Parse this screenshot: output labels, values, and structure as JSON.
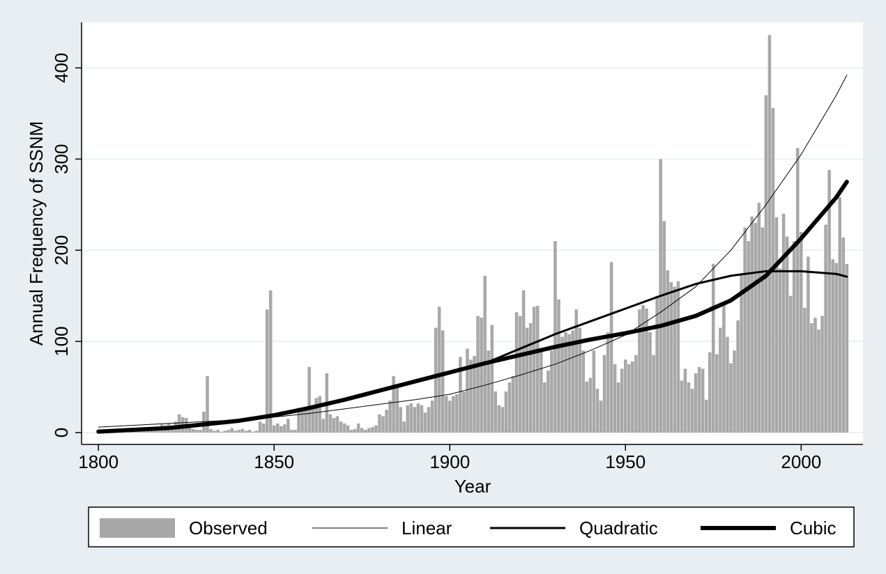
{
  "chart_data": {
    "type": "bar+line",
    "xlabel": "Year",
    "ylabel": "Annual Frequency of SSNM",
    "xlim": [
      1795.2,
      2017.6
    ],
    "ylim": [
      -13,
      450
    ],
    "xticks": [
      1800,
      1850,
      1900,
      1950,
      2000
    ],
    "yticks": [
      0,
      100,
      200,
      300,
      400
    ],
    "grid": true,
    "legend": "bottom",
    "series": [
      {
        "name": "Observed",
        "type": "bar",
        "color": "#a8a8a8",
        "x": [
          1800,
          1801,
          1802,
          1803,
          1804,
          1805,
          1806,
          1807,
          1808,
          1809,
          1810,
          1811,
          1812,
          1813,
          1814,
          1815,
          1816,
          1817,
          1818,
          1819,
          1820,
          1821,
          1822,
          1823,
          1824,
          1825,
          1826,
          1827,
          1828,
          1829,
          1830,
          1831,
          1832,
          1833,
          1834,
          1835,
          1836,
          1837,
          1838,
          1839,
          1840,
          1841,
          1842,
          1843,
          1844,
          1845,
          1846,
          1847,
          1848,
          1849,
          1850,
          1851,
          1852,
          1853,
          1854,
          1855,
          1856,
          1857,
          1858,
          1859,
          1860,
          1861,
          1862,
          1863,
          1864,
          1865,
          1866,
          1867,
          1868,
          1869,
          1870,
          1871,
          1872,
          1873,
          1874,
          1875,
          1876,
          1877,
          1878,
          1879,
          1880,
          1881,
          1882,
          1883,
          1884,
          1885,
          1886,
          1887,
          1888,
          1889,
          1890,
          1891,
          1892,
          1893,
          1894,
          1895,
          1896,
          1897,
          1898,
          1899,
          1900,
          1901,
          1902,
          1903,
          1904,
          1905,
          1906,
          1907,
          1908,
          1909,
          1910,
          1911,
          1912,
          1913,
          1914,
          1915,
          1916,
          1917,
          1918,
          1919,
          1920,
          1921,
          1922,
          1923,
          1924,
          1925,
          1926,
          1927,
          1928,
          1929,
          1930,
          1931,
          1932,
          1933,
          1934,
          1935,
          1936,
          1937,
          1938,
          1939,
          1940,
          1941,
          1942,
          1943,
          1944,
          1945,
          1946,
          1947,
          1948,
          1949,
          1950,
          1951,
          1952,
          1953,
          1954,
          1955,
          1956,
          1957,
          1958,
          1959,
          1960,
          1961,
          1962,
          1963,
          1964,
          1965,
          1966,
          1967,
          1968,
          1969,
          1970,
          1971,
          1972,
          1973,
          1974,
          1975,
          1976,
          1977,
          1978,
          1979,
          1980,
          1981,
          1982,
          1983,
          1984,
          1985,
          1986,
          1987,
          1988,
          1989,
          1990,
          1991,
          1992,
          1993,
          1994,
          1995,
          1996,
          1997,
          1998,
          1999,
          2000,
          2001,
          2002,
          2003,
          2004,
          2005,
          2006,
          2007,
          2008,
          2009,
          2010,
          2011,
          2012,
          2013
        ],
        "values": [
          1,
          0,
          1,
          0,
          2,
          1,
          1,
          2,
          0,
          1,
          2,
          1,
          3,
          2,
          4,
          3,
          5,
          6,
          9,
          8,
          10,
          8,
          12,
          20,
          17,
          16,
          5,
          4,
          3,
          3,
          23,
          62,
          4,
          2,
          3,
          1,
          2,
          3,
          5,
          2,
          3,
          4,
          2,
          3,
          1,
          2,
          12,
          10,
          135,
          156,
          8,
          10,
          7,
          9,
          15,
          3,
          3,
          27,
          25,
          27,
          72,
          30,
          38,
          40,
          15,
          65,
          20,
          16,
          18,
          12,
          10,
          8,
          3,
          4,
          10,
          5,
          3,
          5,
          6,
          8,
          20,
          18,
          25,
          35,
          62,
          50,
          28,
          12,
          30,
          32,
          28,
          32,
          30,
          22,
          28,
          35,
          115,
          138,
          112,
          40,
          35,
          40,
          42,
          83,
          45,
          92,
          80,
          84,
          128,
          126,
          172,
          90,
          118,
          45,
          30,
          28,
          45,
          55,
          62,
          132,
          128,
          156,
          115,
          120,
          138,
          139,
          90,
          55,
          68,
          90,
          210,
          146,
          105,
          110,
          108,
          112,
          135,
          115,
          90,
          56,
          60,
          90,
          48,
          35,
          85,
          110,
          187,
          75,
          55,
          70,
          80,
          75,
          78,
          85,
          135,
          140,
          136,
          110,
          85,
          150,
          300,
          232,
          178,
          165,
          160,
          166,
          57,
          70,
          55,
          48,
          65,
          72,
          70,
          36,
          88,
          185,
          86,
          115,
          140,
          105,
          76,
          90,
          123,
          175,
          225,
          210,
          237,
          230,
          252,
          225,
          370,
          436,
          356,
          236,
          180,
          240,
          215,
          150,
          210,
          312,
          220,
          137,
          193,
          120,
          126,
          113,
          128,
          228,
          288,
          190,
          186,
          258,
          214,
          185
        ]
      },
      {
        "name": "Linear",
        "type": "line",
        "color": "#000000",
        "line_width": 1,
        "x": [
          1800,
          1810,
          1820,
          1830,
          1840,
          1850,
          1860,
          1870,
          1880,
          1890,
          1900,
          1910,
          1920,
          1930,
          1940,
          1950,
          1960,
          1970,
          1980,
          1990,
          2000,
          2010,
          2013
        ],
        "values": [
          6,
          8,
          10,
          12,
          14,
          17,
          21,
          26,
          31,
          36,
          42,
          52,
          63,
          75,
          90,
          107,
          132,
          160,
          200,
          250,
          305,
          370,
          392
        ]
      },
      {
        "name": "Quadratic",
        "type": "line",
        "color": "#000000",
        "line_width": 3,
        "x": [
          1800,
          1810,
          1820,
          1830,
          1840,
          1850,
          1860,
          1870,
          1880,
          1890,
          1900,
          1910,
          1920,
          1930,
          1940,
          1950,
          1960,
          1970,
          1980,
          1990,
          2000,
          2010,
          2013
        ],
        "values": [
          1,
          3,
          5,
          8,
          12,
          18,
          26,
          35,
          45,
          56,
          65,
          76,
          92,
          108,
          122,
          136,
          150,
          163,
          172,
          177,
          177,
          174,
          171
        ]
      },
      {
        "name": "Cubic",
        "type": "line",
        "color": "#000000",
        "line_width": 6,
        "x": [
          1800,
          1810,
          1820,
          1830,
          1840,
          1850,
          1860,
          1870,
          1880,
          1890,
          1900,
          1910,
          1920,
          1930,
          1940,
          1950,
          1960,
          1970,
          1980,
          1990,
          2000,
          2010,
          2013
        ],
        "values": [
          1,
          3,
          5,
          9,
          13,
          19,
          27,
          36,
          46,
          56,
          66,
          76,
          85,
          94,
          102,
          109,
          117,
          128,
          145,
          172,
          213,
          258,
          275
        ]
      }
    ]
  }
}
